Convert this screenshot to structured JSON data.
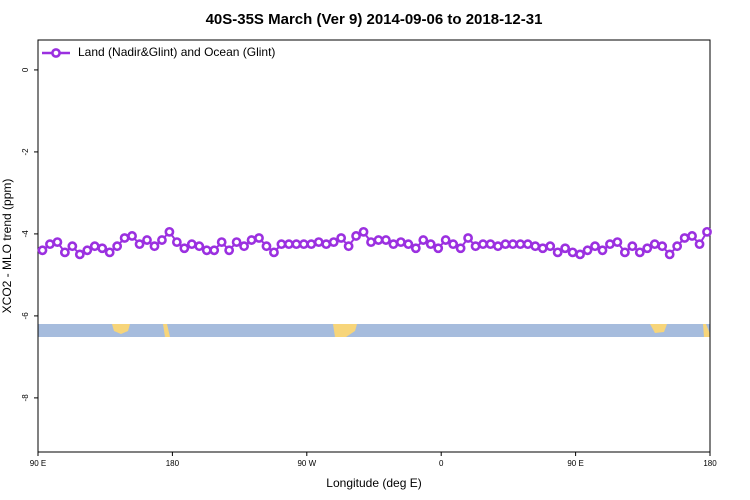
{
  "chart_data": {
    "type": "line",
    "title": "40S-35S March (Ver 9)   2014-09-06 to 2018-12-31",
    "x_label": "Longitude (deg E)",
    "y_label": "XCO2 - MLO trend (ppm)",
    "xlim": [
      90,
      540
    ],
    "ylim": [
      -9.32,
      0.73
    ],
    "xticks": [
      {
        "value": 90,
        "label": "90 E"
      },
      180,
      {
        "value": 270,
        "label": "90 W"
      },
      {
        "value": 360,
        "label": "0"
      },
      {
        "value": 450,
        "label": "90 E"
      },
      {
        "value": 540,
        "label": "180"
      }
    ],
    "yticks": [
      0,
      -2,
      -4,
      -6,
      -8
    ],
    "legend": "top-left",
    "series": [
      {
        "name": "Land (Nadir&Glint) and Ocean (Glint)",
        "color": "#9b30e0",
        "x": [
          93,
          98,
          103,
          108,
          113,
          118,
          123,
          128,
          133,
          138,
          143,
          148,
          153,
          158,
          163,
          168,
          173,
          178,
          183,
          188,
          193,
          198,
          203,
          208,
          213,
          218,
          223,
          228,
          233,
          238,
          243,
          248,
          253,
          258,
          263,
          268,
          273,
          278,
          283,
          288,
          293,
          298,
          303,
          308,
          313,
          318,
          323,
          328,
          333,
          338,
          343,
          348,
          353,
          358,
          363,
          368,
          373,
          378,
          383,
          388,
          393,
          398,
          403,
          408,
          413,
          418,
          423,
          428,
          433,
          438,
          443,
          448,
          453,
          458,
          463,
          468,
          473,
          478,
          483,
          488,
          493,
          498,
          503,
          508,
          513,
          518,
          523,
          528,
          533,
          538
        ],
        "values": [
          -4.4,
          -4.25,
          -4.2,
          -4.45,
          -4.3,
          -4.5,
          -4.4,
          -4.3,
          -4.35,
          -4.45,
          -4.3,
          -4.1,
          -4.05,
          -4.25,
          -4.15,
          -4.3,
          -4.15,
          -3.95,
          -4.2,
          -4.35,
          -4.25,
          -4.3,
          -4.4,
          -4.4,
          -4.2,
          -4.4,
          -4.2,
          -4.3,
          -4.15,
          -4.1,
          -4.3,
          -4.45,
          -4.25,
          -4.25,
          -4.25,
          -4.25,
          -4.25,
          -4.2,
          -4.25,
          -4.2,
          -4.1,
          -4.3,
          -4.05,
          -3.95,
          -4.2,
          -4.15,
          -4.15,
          -4.25,
          -4.2,
          -4.25,
          -4.35,
          -4.15,
          -4.25,
          -4.35,
          -4.15,
          -4.25,
          -4.35,
          -4.1,
          -4.3,
          -4.25,
          -4.25,
          -4.3,
          -4.25,
          -4.25,
          -4.25,
          -4.25,
          -4.3,
          -4.35,
          -4.3,
          -4.45,
          -4.35,
          -4.45,
          -4.5,
          -4.4,
          -4.3,
          -4.4,
          -4.25,
          -4.2,
          -4.45,
          -4.3,
          -4.45,
          -4.35,
          -4.25,
          -4.3,
          -4.5,
          -4.3,
          -4.1,
          -4.05,
          -4.25,
          -3.95
        ]
      }
    ]
  }
}
